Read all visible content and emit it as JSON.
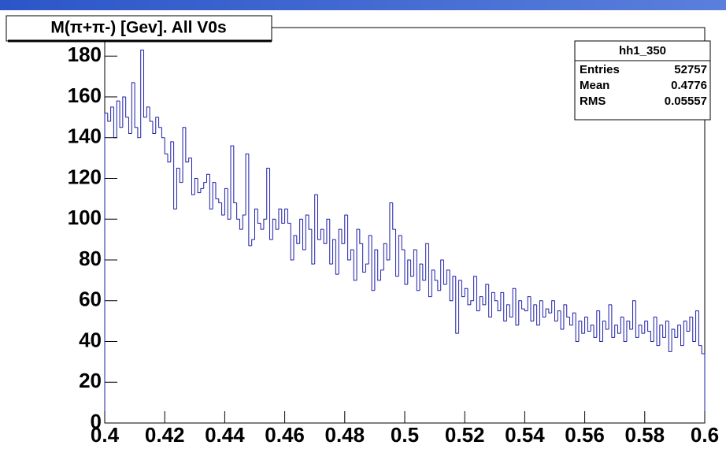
{
  "chart_data": {
    "type": "histogram",
    "title": "M(π+π-) [Gev]. All V0s",
    "bins": [
      0.4,
      0.401,
      0.402,
      0.403,
      0.404,
      0.405,
      0.406,
      0.407,
      0.408,
      0.409,
      0.41,
      0.411,
      0.412,
      0.413,
      0.414,
      0.415,
      0.416,
      0.417,
      0.418,
      0.419,
      0.42,
      0.421,
      0.422,
      0.423,
      0.424,
      0.425,
      0.426,
      0.427,
      0.428,
      0.429,
      0.43,
      0.431,
      0.432,
      0.433,
      0.434,
      0.435,
      0.436,
      0.437,
      0.438,
      0.439,
      0.44,
      0.441,
      0.442,
      0.443,
      0.444,
      0.445,
      0.446,
      0.447,
      0.448,
      0.449,
      0.45,
      0.451,
      0.452,
      0.453,
      0.454,
      0.455,
      0.456,
      0.457,
      0.458,
      0.459,
      0.46,
      0.461,
      0.462,
      0.463,
      0.464,
      0.465,
      0.466,
      0.467,
      0.468,
      0.469,
      0.47,
      0.471,
      0.472,
      0.473,
      0.474,
      0.475,
      0.476,
      0.477,
      0.478,
      0.479,
      0.48,
      0.481,
      0.482,
      0.483,
      0.484,
      0.485,
      0.486,
      0.487,
      0.488,
      0.489,
      0.49,
      0.491,
      0.492,
      0.493,
      0.494,
      0.495,
      0.496,
      0.497,
      0.498,
      0.499,
      0.5,
      0.501,
      0.502,
      0.503,
      0.504,
      0.505,
      0.506,
      0.507,
      0.508,
      0.509,
      0.51,
      0.511,
      0.512,
      0.513,
      0.514,
      0.515,
      0.516,
      0.517,
      0.518,
      0.519,
      0.52,
      0.521,
      0.522,
      0.523,
      0.524,
      0.525,
      0.526,
      0.527,
      0.528,
      0.529,
      0.53,
      0.531,
      0.532,
      0.533,
      0.534,
      0.535,
      0.536,
      0.537,
      0.538,
      0.539,
      0.54,
      0.541,
      0.542,
      0.543,
      0.544,
      0.545,
      0.546,
      0.547,
      0.548,
      0.549,
      0.55,
      0.551,
      0.552,
      0.553,
      0.554,
      0.555,
      0.556,
      0.557,
      0.558,
      0.559,
      0.56,
      0.561,
      0.562,
      0.563,
      0.564,
      0.565,
      0.566,
      0.567,
      0.568,
      0.569,
      0.57,
      0.571,
      0.572,
      0.573,
      0.574,
      0.575,
      0.576,
      0.577,
      0.578,
      0.579,
      0.58,
      0.581,
      0.582,
      0.583,
      0.584,
      0.585,
      0.586,
      0.587,
      0.588,
      0.589,
      0.59,
      0.591,
      0.592,
      0.593,
      0.594,
      0.595,
      0.596,
      0.597,
      0.598,
      0.599,
      0.6
    ],
    "values": [
      152,
      148,
      155,
      140,
      158,
      145,
      160,
      150,
      142,
      167,
      145,
      140,
      183,
      150,
      155,
      148,
      142,
      150,
      145,
      140,
      132,
      128,
      138,
      105,
      125,
      118,
      145,
      128,
      130,
      112,
      120,
      113,
      115,
      118,
      122,
      105,
      118,
      110,
      108,
      102,
      115,
      100,
      136,
      108,
      100,
      95,
      102,
      132,
      87,
      90,
      105,
      98,
      95,
      100,
      125,
      90,
      100,
      95,
      105,
      98,
      105,
      98,
      80,
      92,
      88,
      100,
      85,
      102,
      95,
      78,
      112,
      90,
      95,
      88,
      100,
      78,
      90,
      73,
      95,
      88,
      102,
      80,
      85,
      70,
      95,
      88,
      74,
      78,
      92,
      65,
      85,
      70,
      75,
      88,
      80,
      108,
      95,
      72,
      92,
      85,
      68,
      80,
      72,
      85,
      65,
      78,
      70,
      88,
      62,
      75,
      70,
      65,
      80,
      68,
      75,
      60,
      72,
      44,
      70,
      62,
      66,
      58,
      60,
      72,
      55,
      62,
      58,
      68,
      52,
      64,
      60,
      55,
      64,
      50,
      58,
      52,
      66,
      48,
      60,
      56,
      55,
      62,
      50,
      58,
      48,
      60,
      52,
      56,
      54,
      60,
      50,
      55,
      46,
      58,
      52,
      48,
      54,
      40,
      50,
      44,
      52,
      45,
      48,
      42,
      55,
      40,
      50,
      46,
      58,
      42,
      48,
      44,
      52,
      40,
      50,
      46,
      60,
      42,
      48,
      44,
      50,
      45,
      40,
      52,
      38,
      48,
      42,
      50,
      35,
      46,
      42,
      48,
      38,
      50,
      45,
      52,
      40,
      55,
      38,
      34
    ],
    "color": "#1c1ca8",
    "xlim": [
      0.4,
      0.6
    ],
    "xticks": [
      0.4,
      0.42,
      0.44,
      0.46,
      0.48,
      0.5,
      0.52,
      0.54,
      0.56,
      0.58,
      0.6
    ],
    "ylim": [
      0,
      194
    ],
    "yticks": [
      0,
      20,
      40,
      60,
      80,
      100,
      120,
      140,
      160,
      180
    ],
    "stats": {
      "name": "hh1_350",
      "rows": [
        [
          "Entries",
          52757
        ],
        [
          "Mean",
          0.4776
        ],
        [
          "RMS",
          0.05557
        ]
      ]
    }
  }
}
